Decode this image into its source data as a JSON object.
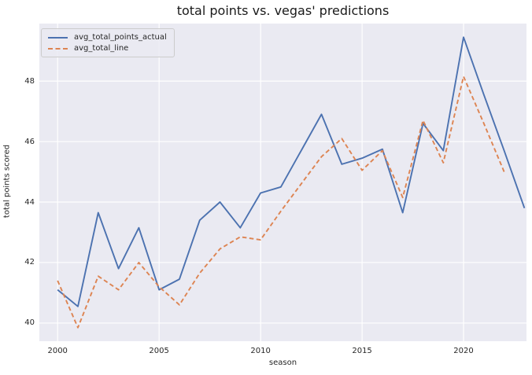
{
  "chart_data": {
    "type": "line",
    "title": "total points vs. vegas' predictions",
    "xlabel": "season",
    "ylabel": "total points scored",
    "xlim": [
      1999.1,
      2023.1
    ],
    "ylim": [
      39.4,
      49.9
    ],
    "x_ticks": [
      2000,
      2005,
      2010,
      2015,
      2020
    ],
    "y_ticks": [
      40,
      42,
      44,
      46,
      48
    ],
    "grid": true,
    "legend_position": "upper left",
    "axes_background": "#eaeaf2",
    "grid_color": "#ffffff",
    "series": [
      {
        "name": "avg_total_points_actual",
        "color": "#4c72b0",
        "style": "solid",
        "x": [
          2000,
          2001,
          2002,
          2003,
          2004,
          2005,
          2006,
          2007,
          2008,
          2009,
          2010,
          2011,
          2012,
          2013,
          2014,
          2015,
          2016,
          2017,
          2018,
          2019,
          2020,
          2021,
          2022,
          2023
        ],
        "y": [
          41.1,
          40.55,
          43.65,
          41.8,
          43.15,
          41.1,
          41.45,
          43.4,
          44.0,
          43.15,
          44.3,
          44.5,
          45.7,
          46.9,
          45.25,
          45.45,
          45.75,
          43.65,
          46.6,
          45.7,
          49.45,
          47.55,
          45.7,
          43.8
        ]
      },
      {
        "name": "avg_total_line",
        "color": "#dd8452",
        "style": "dashed",
        "x": [
          2000,
          2001,
          2002,
          2003,
          2004,
          2005,
          2006,
          2007,
          2008,
          2009,
          2010,
          2011,
          2012,
          2013,
          2014,
          2015,
          2016,
          2017,
          2018,
          2019,
          2020,
          2021,
          2022
        ],
        "y": [
          41.4,
          39.85,
          41.55,
          41.1,
          42.0,
          41.2,
          40.6,
          41.65,
          42.45,
          42.85,
          42.75,
          43.7,
          44.6,
          45.5,
          46.1,
          45.05,
          45.7,
          44.15,
          46.7,
          45.3,
          48.15,
          46.6,
          45.0
        ]
      }
    ]
  }
}
